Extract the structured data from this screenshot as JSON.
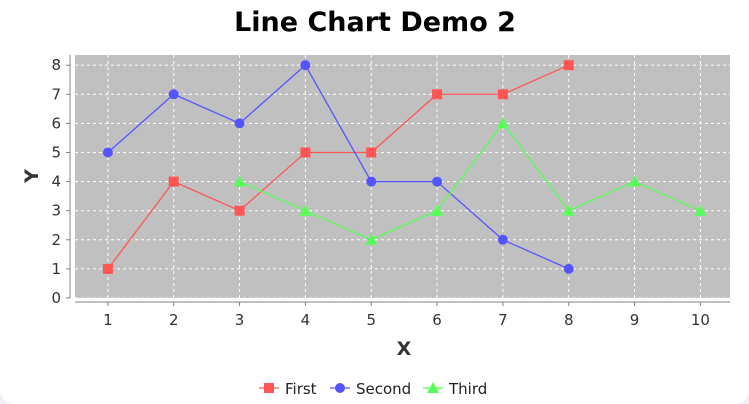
{
  "chart_data": {
    "type": "line",
    "title": "Line Chart Demo 2",
    "xlabel": "X",
    "ylabel": "Y",
    "xlim": [
      0.5,
      10.45
    ],
    "ylim": [
      0,
      8.35
    ],
    "xticks": [
      1,
      2,
      3,
      4,
      5,
      6,
      7,
      8,
      9,
      10
    ],
    "yticks": [
      0,
      1,
      2,
      3,
      4,
      5,
      6,
      7,
      8
    ],
    "grid": true,
    "legend_position": "bottom",
    "plot_background": "#c0c0c0",
    "series": [
      {
        "name": "First",
        "color": "#ff5555",
        "marker": "square",
        "x": [
          1,
          2,
          3,
          4,
          5,
          6,
          7,
          8
        ],
        "y": [
          1,
          4,
          3,
          5,
          5,
          7,
          7,
          8
        ]
      },
      {
        "name": "Second",
        "color": "#5555ff",
        "marker": "circle",
        "x": [
          1,
          2,
          3,
          4,
          5,
          6,
          7,
          8
        ],
        "y": [
          5,
          7,
          6,
          8,
          4,
          4,
          2,
          1
        ]
      },
      {
        "name": "Third",
        "color": "#55ff55",
        "marker": "triangle",
        "x": [
          3,
          4,
          5,
          6,
          7,
          8,
          9,
          10
        ],
        "y": [
          4,
          3,
          2,
          3,
          6,
          3,
          4,
          3
        ]
      }
    ]
  }
}
